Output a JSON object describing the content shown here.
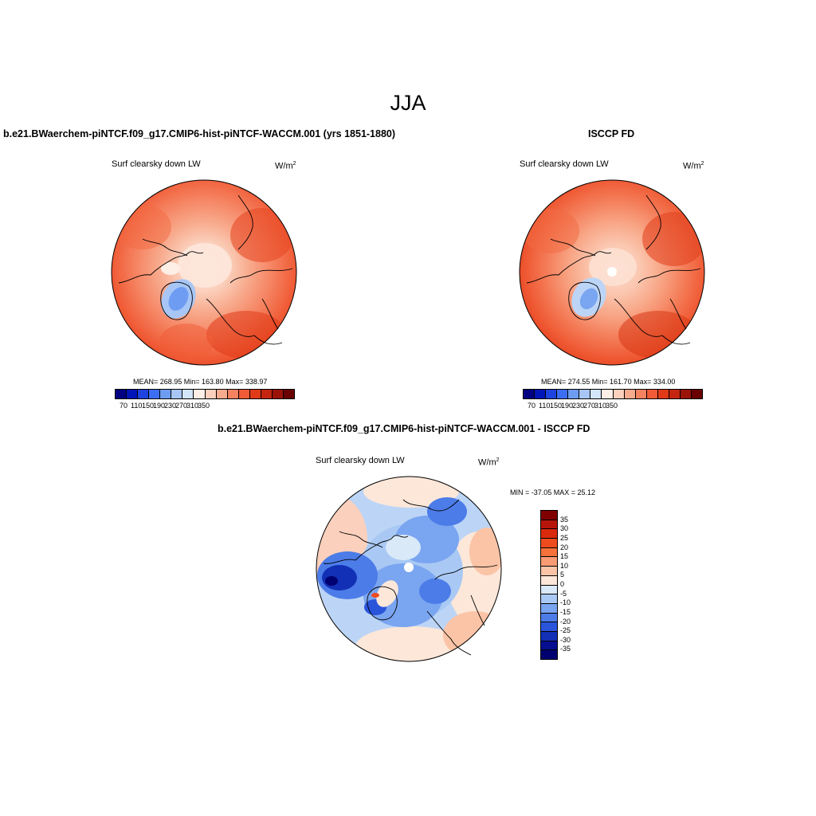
{
  "figure": {
    "title": "JJA"
  },
  "panels": {
    "model": {
      "title": "b.e21.BWaerchem-piNTCF.f09_g17.CMIP6-hist-piNTCF-WACCM.001 (yrs 1851-1880)",
      "variable": "Surf clearsky down LW",
      "units_base": "W/m",
      "units_exp": "2",
      "stats": "MEAN= 268.95  Min= 163.80  Max= 338.97"
    },
    "obs": {
      "title": "ISCCP FD",
      "variable": "Surf clearsky down LW",
      "units_base": "W/m",
      "units_exp": "2",
      "stats": "MEAN= 274.55  Min= 161.70  Max= 334.00"
    },
    "diff": {
      "title": "b.e21.BWaerchem-piNTCF.f09_g17.CMIP6-hist-piNTCF-WACCM.001 - ISCCP FD",
      "variable": "Surf clearsky down LW",
      "units_base": "W/m",
      "units_exp": "2",
      "stats": "MIN = -37.05 MAX =  25.12"
    }
  },
  "colorbars": {
    "abs": {
      "labels": [
        "70",
        "110",
        "150",
        "190",
        "230",
        "270",
        "310",
        "350"
      ],
      "colors": [
        "#000080",
        "#0015b8",
        "#1f43e0",
        "#3d6df0",
        "#6e9cf2",
        "#a8c6f5",
        "#d3e5f8",
        "#fdeee6",
        "#fbd0bc",
        "#f8ab8e",
        "#f58260",
        "#f05b36",
        "#e03a18",
        "#c42510",
        "#9b1208",
        "#6a0000"
      ]
    },
    "diff": {
      "labels": [
        "35",
        "30",
        "25",
        "20",
        "15",
        "10",
        "5",
        "0",
        "-5",
        "-10",
        "-15",
        "-20",
        "-25",
        "-30",
        "-35"
      ],
      "colors": [
        "#800000",
        "#b8150a",
        "#d92a0c",
        "#ee4b1e",
        "#f7713a",
        "#f99c74",
        "#fbc4a6",
        "#fde7d9",
        "#d9e9f8",
        "#a9c9f4",
        "#7aa5f0",
        "#4c7ce8",
        "#2a55db",
        "#1230b5",
        "#050f90",
        "#000070"
      ]
    }
  }
}
